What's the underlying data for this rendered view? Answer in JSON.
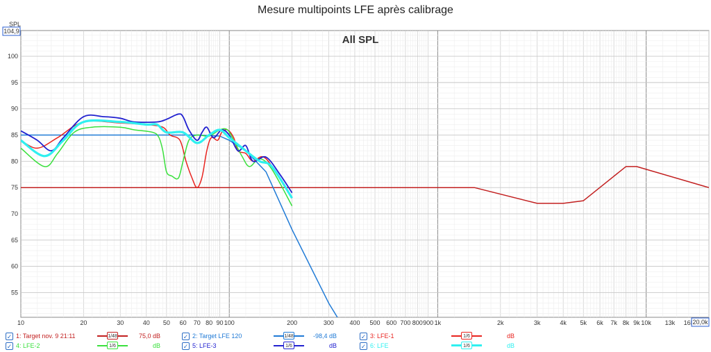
{
  "title": "Mesure multipoints LFE après calibrage",
  "chart_data": {
    "type": "line",
    "title": "Mesure multipoints LFE après calibrage",
    "subtitle": "All SPL",
    "ylabel": "SPL",
    "ylim": [
      50.3,
      104.9
    ],
    "ylim_label": "104,9",
    "xlim": [
      10,
      20000
    ],
    "xlim_label": "20,0k",
    "x_scale": "log",
    "grid": true,
    "y_ticks": [
      55,
      60,
      65,
      70,
      75,
      80,
      85,
      90,
      95,
      100
    ],
    "x_ticks": [
      {
        "v": 10,
        "t": "10"
      },
      {
        "v": 20,
        "t": "20"
      },
      {
        "v": 30,
        "t": "30"
      },
      {
        "v": 40,
        "t": "40"
      },
      {
        "v": 50,
        "t": "50"
      },
      {
        "v": 60,
        "t": "60"
      },
      {
        "v": 70,
        "t": "70"
      },
      {
        "v": 80,
        "t": "80"
      },
      {
        "v": 90,
        "t": "90"
      },
      {
        "v": 100,
        "t": "100"
      },
      {
        "v": 200,
        "t": "200"
      },
      {
        "v": 300,
        "t": "300"
      },
      {
        "v": 400,
        "t": "400"
      },
      {
        "v": 500,
        "t": "500"
      },
      {
        "v": 600,
        "t": "600"
      },
      {
        "v": 700,
        "t": "700"
      },
      {
        "v": 800,
        "t": "800"
      },
      {
        "v": 900,
        "t": "900"
      },
      {
        "v": 1000,
        "t": "1k"
      },
      {
        "v": 2000,
        "t": "2k"
      },
      {
        "v": 3000,
        "t": "3k"
      },
      {
        "v": 4000,
        "t": "4k"
      },
      {
        "v": 5000,
        "t": "5k"
      },
      {
        "v": 6000,
        "t": "6k"
      },
      {
        "v": 7000,
        "t": "7k"
      },
      {
        "v": 8000,
        "t": "8k"
      },
      {
        "v": 9000,
        "t": "9k"
      },
      {
        "v": 10000,
        "t": "10k"
      },
      {
        "v": 13000,
        "t": "13k"
      },
      {
        "v": 16000,
        "t": "16k"
      }
    ],
    "series": [
      {
        "name": "1: Target nov. 9 21:11",
        "color": "#c21f1f",
        "width": 1.5,
        "points": [
          [
            10,
            75
          ],
          [
            1500,
            75
          ],
          [
            3000,
            72
          ],
          [
            4000,
            72
          ],
          [
            5000,
            72.5
          ],
          [
            8000,
            79
          ],
          [
            9000,
            79
          ],
          [
            20000,
            75
          ]
        ]
      },
      {
        "name": "2: Target LFE 120",
        "color": "#1f7ad6",
        "width": 1.5,
        "points": [
          [
            10,
            85
          ],
          [
            70,
            85
          ],
          [
            90,
            84.8
          ],
          [
            100,
            84
          ],
          [
            120,
            82
          ],
          [
            150,
            78
          ],
          [
            200,
            67
          ],
          [
            300,
            53
          ],
          [
            330,
            50.3
          ]
        ]
      },
      {
        "name": "3: LFE-1",
        "color": "#e8231e",
        "width": 1.5,
        "points": [
          [
            10,
            84
          ],
          [
            12,
            82.5
          ],
          [
            15,
            84.5
          ],
          [
            20,
            87.5
          ],
          [
            30,
            87.3
          ],
          [
            40,
            87
          ],
          [
            48,
            86.5
          ],
          [
            52,
            85
          ],
          [
            58,
            84
          ],
          [
            62,
            80
          ],
          [
            66,
            77
          ],
          [
            70,
            75
          ],
          [
            74,
            77
          ],
          [
            78,
            82
          ],
          [
            82,
            84.5
          ],
          [
            88,
            84
          ],
          [
            92,
            85.5
          ],
          [
            98,
            86
          ],
          [
            105,
            84.5
          ],
          [
            110,
            82
          ],
          [
            120,
            81.5
          ],
          [
            130,
            80
          ],
          [
            150,
            80.5
          ],
          [
            200,
            73
          ]
        ]
      },
      {
        "name": "4: LFE-2",
        "color": "#39e03c",
        "width": 1.5,
        "points": [
          [
            10,
            82.5
          ],
          [
            13,
            79
          ],
          [
            15,
            81.5
          ],
          [
            18,
            85.5
          ],
          [
            22,
            86.5
          ],
          [
            30,
            86.5
          ],
          [
            35,
            86
          ],
          [
            43,
            85.5
          ],
          [
            46,
            84.5
          ],
          [
            48,
            82
          ],
          [
            50,
            78
          ],
          [
            53,
            77.2
          ],
          [
            57,
            76.8
          ],
          [
            60,
            80
          ],
          [
            64,
            84
          ],
          [
            70,
            85
          ],
          [
            80,
            84.8
          ],
          [
            90,
            86
          ],
          [
            98,
            86
          ],
          [
            105,
            84
          ],
          [
            115,
            81
          ],
          [
            125,
            79
          ],
          [
            140,
            80.5
          ],
          [
            160,
            78.5
          ],
          [
            200,
            71.5
          ]
        ]
      },
      {
        "name": "5: LFE-3",
        "color": "#2121d0",
        "width": 1.8,
        "points": [
          [
            10,
            85.8
          ],
          [
            12,
            84
          ],
          [
            14,
            82
          ],
          [
            16,
            84.5
          ],
          [
            20,
            88.5
          ],
          [
            25,
            88.5
          ],
          [
            30,
            88.2
          ],
          [
            35,
            87.5
          ],
          [
            45,
            87.5
          ],
          [
            50,
            88
          ],
          [
            57,
            89
          ],
          [
            60,
            88.5
          ],
          [
            64,
            86
          ],
          [
            70,
            84
          ],
          [
            74,
            85.5
          ],
          [
            78,
            86.5
          ],
          [
            84,
            84.5
          ],
          [
            92,
            86
          ],
          [
            100,
            85
          ],
          [
            110,
            82
          ],
          [
            120,
            83
          ],
          [
            130,
            80
          ],
          [
            150,
            80.8
          ],
          [
            175,
            77.5
          ],
          [
            200,
            74
          ]
        ]
      },
      {
        "name": "6: LFE",
        "color": "#2ff0f0",
        "width": 3.2,
        "points": [
          [
            10,
            84
          ],
          [
            13,
            81
          ],
          [
            16,
            84
          ],
          [
            20,
            87.5
          ],
          [
            30,
            87.5
          ],
          [
            40,
            87
          ],
          [
            45,
            87
          ],
          [
            50,
            85.5
          ],
          [
            60,
            85.5
          ],
          [
            70,
            83.5
          ],
          [
            80,
            85
          ],
          [
            90,
            86
          ],
          [
            100,
            84.5
          ],
          [
            120,
            82
          ],
          [
            140,
            80
          ],
          [
            160,
            79
          ],
          [
            200,
            73
          ]
        ]
      }
    ]
  },
  "legend": [
    {
      "label": "1: Target nov. 9 21:11",
      "smoothing": "1/48",
      "value": "75,0 dB",
      "color": "#c21f1f"
    },
    {
      "label": "2: Target LFE 120",
      "smoothing": "1/48",
      "value": "-98,4 dB",
      "color": "#1f7ad6"
    },
    {
      "label": "3: LFE-1",
      "smoothing": "1/6",
      "value": "dB",
      "color": "#e8231e"
    },
    {
      "label": "4: LFE-2",
      "smoothing": "1/6",
      "value": "dB",
      "color": "#39e03c"
    },
    {
      "label": "5: LFE-3",
      "smoothing": "1/6",
      "value": "dB",
      "color": "#2121d0"
    },
    {
      "label": "6: LFE",
      "smoothing": "1/6",
      "value": "dB",
      "color": "#2ff0f0"
    }
  ],
  "check_mark": "✓"
}
